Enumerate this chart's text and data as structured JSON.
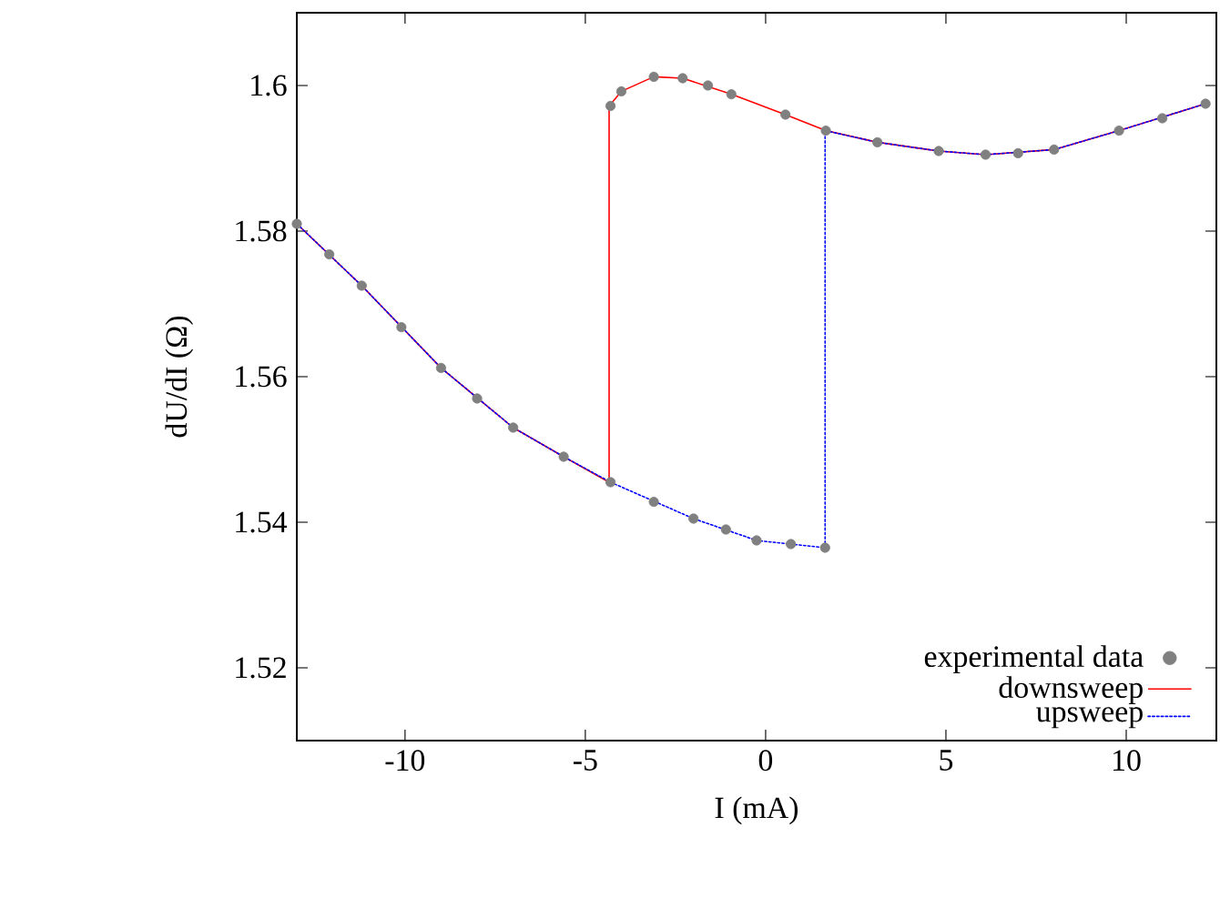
{
  "chart_data": {
    "type": "line",
    "xlabel": "I (mA)",
    "ylabel": "dU/dI (Ω)",
    "xlim": [
      -13,
      12.5
    ],
    "ylim": [
      1.51,
      1.61
    ],
    "xticks": [
      -10,
      -5,
      0,
      5,
      10
    ],
    "yticks": [
      1.52,
      1.54,
      1.56,
      1.58,
      1.6
    ],
    "grid": false,
    "legend": "bottom right",
    "series": [
      {
        "name": "experimental data",
        "type": "scatter",
        "marker": "circle",
        "color": "#808080",
        "x": [
          -13,
          -12.1,
          -11.2,
          -10.1,
          -9.0,
          -8.0,
          -7.0,
          -5.6,
          -4.3,
          -3.1,
          -2.0,
          -1.1,
          -0.25,
          0.7,
          1.65,
          -4.3,
          -4.0,
          -3.1,
          -2.3,
          -1.6,
          -0.95,
          0.55,
          1.67,
          3.1,
          4.8,
          6.1,
          7.0,
          8.0,
          9.8,
          11.0,
          12.2
        ],
        "values": [
          1.581,
          1.5768,
          1.5725,
          1.5668,
          1.5612,
          1.557,
          1.553,
          1.549,
          1.5455,
          1.5428,
          1.5405,
          1.539,
          1.5375,
          1.537,
          1.5365,
          1.5972,
          1.5992,
          1.6012,
          1.601,
          1.6,
          1.5988,
          1.596,
          1.5938,
          1.5922,
          1.591,
          1.5905,
          1.5907,
          1.5912,
          1.5938,
          1.5955,
          1.5975
        ]
      },
      {
        "name": "downsweep",
        "color": "#ff0000",
        "line_style": "solid",
        "marker": "none",
        "x": [
          12.2,
          9.8,
          8.0,
          6.1,
          4.8,
          3.1,
          1.67,
          0.55,
          -0.95,
          -2.3,
          -3.1,
          -4.0,
          -4.34,
          -4.34,
          -5.6,
          -7.0,
          -9.0,
          -11.2,
          -13
        ],
        "values": [
          1.5975,
          1.5938,
          1.5912,
          1.5905,
          1.591,
          1.5922,
          1.5938,
          1.596,
          1.5988,
          1.601,
          1.6012,
          1.5992,
          1.5972,
          1.5455,
          1.549,
          1.553,
          1.5612,
          1.5725,
          1.581
        ]
      },
      {
        "name": "upsweep",
        "color": "#0000ff",
        "line_style": "dotted",
        "marker": "none",
        "x": [
          -13,
          -11.2,
          -9.0,
          -7.0,
          -5.6,
          -4.3,
          -2.0,
          -0.25,
          1.65,
          1.65,
          3.1,
          4.8,
          6.1,
          8.0,
          9.8,
          12.2
        ],
        "values": [
          1.581,
          1.5725,
          1.5612,
          1.553,
          1.549,
          1.5455,
          1.5405,
          1.5375,
          1.5365,
          1.5938,
          1.5922,
          1.591,
          1.5905,
          1.5912,
          1.5938,
          1.5975
        ]
      }
    ]
  }
}
